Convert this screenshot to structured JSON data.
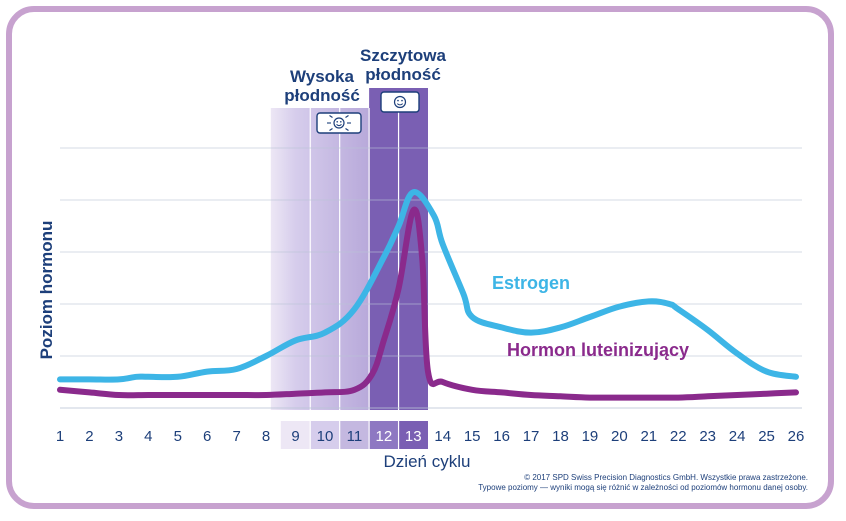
{
  "chart_data": {
    "type": "line",
    "xlabel": "Dzień cyklu",
    "ylabel": "Poziom hormonu",
    "x": [
      1,
      2,
      3,
      4,
      5,
      6,
      7,
      8,
      9,
      10,
      11,
      12,
      13,
      14,
      15,
      16,
      17,
      18,
      19,
      20,
      21,
      22,
      23,
      24,
      25,
      26
    ],
    "xlim": [
      1,
      26
    ],
    "ylim": [
      0,
      100
    ],
    "grid": true,
    "series": [
      {
        "name": "Estrogen",
        "color": "#3db5e6",
        "label_position": "right-of-peak",
        "points": [
          [
            1,
            11
          ],
          [
            2,
            11
          ],
          [
            3,
            11
          ],
          [
            3.6,
            12
          ],
          [
            4,
            12
          ],
          [
            5,
            12
          ],
          [
            6,
            14
          ],
          [
            7,
            15
          ],
          [
            8,
            20
          ],
          [
            9,
            26
          ],
          [
            10,
            29
          ],
          [
            11,
            38
          ],
          [
            12,
            58
          ],
          [
            12.5,
            70
          ],
          [
            13,
            83
          ],
          [
            13.7,
            74
          ],
          [
            14,
            63
          ],
          [
            14.7,
            44
          ],
          [
            15,
            35
          ],
          [
            16,
            31
          ],
          [
            17,
            29
          ],
          [
            18,
            31
          ],
          [
            19,
            35
          ],
          [
            20,
            39
          ],
          [
            21,
            41
          ],
          [
            21.7,
            40
          ],
          [
            22,
            38
          ],
          [
            23,
            30
          ],
          [
            24,
            21
          ],
          [
            25,
            14
          ],
          [
            26,
            12
          ]
        ]
      },
      {
        "name": "Hormon luteinizujący",
        "color": "#8a2a8c",
        "label_position": "bottom-right",
        "points": [
          [
            1,
            7
          ],
          [
            2,
            6
          ],
          [
            3,
            5
          ],
          [
            4,
            5
          ],
          [
            5,
            5
          ],
          [
            6,
            5
          ],
          [
            7,
            5
          ],
          [
            8,
            5
          ],
          [
            9,
            5.5
          ],
          [
            10,
            6
          ],
          [
            11,
            7
          ],
          [
            11.6,
            13
          ],
          [
            12,
            26
          ],
          [
            12.5,
            46
          ],
          [
            13,
            76
          ],
          [
            13.3,
            58
          ],
          [
            13.5,
            14
          ],
          [
            14,
            10
          ],
          [
            15,
            7
          ],
          [
            16,
            6
          ],
          [
            17,
            5
          ],
          [
            18,
            4.5
          ],
          [
            19,
            4
          ],
          [
            20,
            4
          ],
          [
            21,
            4
          ],
          [
            22,
            4
          ],
          [
            23,
            4.5
          ],
          [
            24,
            5
          ],
          [
            25,
            5.5
          ],
          [
            26,
            6
          ]
        ]
      }
    ],
    "tick_labels": [
      "1",
      "2",
      "3",
      "4",
      "5",
      "6",
      "7",
      "8",
      "9",
      "10",
      "11",
      "12",
      "13",
      "14",
      "15",
      "16",
      "17",
      "18",
      "19",
      "20",
      "21",
      "22",
      "23",
      "24",
      "25",
      "26"
    ],
    "highlight_days_high": [
      9,
      10,
      11
    ],
    "highlight_days_peak": [
      12,
      13
    ],
    "zones": [
      {
        "title_line1": "Wysoka",
        "title_line2": "płodność",
        "days": [
          9,
          11
        ],
        "icon": "smiley-shining-icon",
        "color": "#cfc6e6"
      },
      {
        "title_line1": "Szczytowa",
        "title_line2": "płodność",
        "days": [
          12,
          13
        ],
        "icon": "smiley-icon",
        "color": "#7a5fb3"
      }
    ],
    "copyright_line1": "© 2017 SPD Swiss Precision Diagnostics GmbH. Wszystkie prawa zastrzeżone.",
    "copyright_line2": "Typowe poziomy — wyniki mogą się różnić w zależności od poziomów hormonu danej osoby."
  }
}
